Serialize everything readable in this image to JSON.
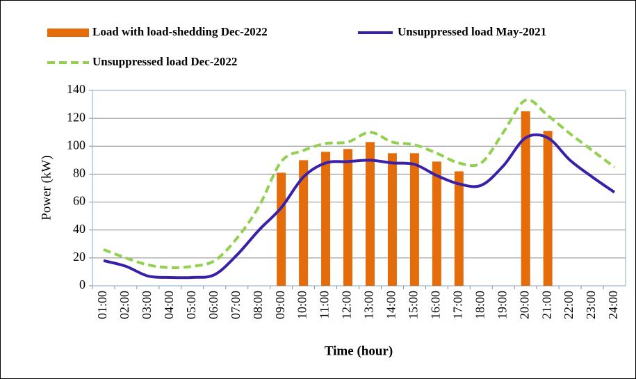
{
  "chart_data": {
    "type": "bar",
    "x_label": "Time (hour)",
    "y_label": "Power (kW)",
    "categories": [
      "01:00",
      "02:00",
      "03:00",
      "04:00",
      "05:00",
      "06:00",
      "07:00",
      "08:00",
      "09:00",
      "10:00",
      "11:00",
      "12:00",
      "13:00",
      "14:00",
      "15:00",
      "16:00",
      "17:00",
      "18:00",
      "19:00",
      "20:00",
      "21:00",
      "22:00",
      "23:00",
      "24:00"
    ],
    "series": [
      {
        "name": "Load with load-shedding Dec-2022",
        "type": "bar",
        "color": "#e46c0a",
        "values": [
          null,
          null,
          null,
          null,
          null,
          null,
          null,
          null,
          81,
          90,
          96,
          98,
          103,
          95,
          95,
          89,
          82,
          null,
          null,
          125,
          111,
          null,
          null,
          null
        ]
      },
      {
        "name": "Unsuppressed load May-2021",
        "type": "line",
        "color": "#3a20a8",
        "dashed": false,
        "values": [
          18,
          14,
          7,
          6,
          6,
          8,
          22,
          40,
          56,
          78,
          88,
          89,
          90,
          88,
          87,
          79,
          73,
          72,
          86,
          106,
          106,
          90,
          78,
          67
        ]
      },
      {
        "name": "Unsuppressed load Dec-2022",
        "type": "line",
        "color": "#92d050",
        "dashed": true,
        "values": [
          26,
          20,
          15,
          13,
          14,
          18,
          34,
          57,
          89,
          97,
          102,
          103,
          110,
          103,
          101,
          95,
          88,
          88,
          110,
          133,
          122,
          109,
          97,
          85
        ]
      }
    ],
    "ylim": [
      0,
      140
    ],
    "yticks": [
      0,
      20,
      40,
      60,
      80,
      100,
      120,
      140
    ],
    "grid": true
  }
}
